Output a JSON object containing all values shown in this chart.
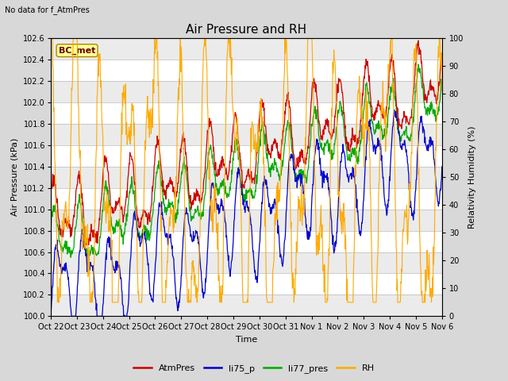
{
  "title": "Air Pressure and RH",
  "subtitle": "No data for f_AtmPres",
  "xlabel": "Time",
  "ylabel_left": "Air Pressure (kPa)",
  "ylabel_right": "Relativity Humidity (%)",
  "ylim_left": [
    100.0,
    102.6
  ],
  "ylim_right": [
    0,
    100
  ],
  "yticks_left": [
    100.0,
    100.2,
    100.4,
    100.6,
    100.8,
    101.0,
    101.2,
    101.4,
    101.6,
    101.8,
    102.0,
    102.2,
    102.4,
    102.6
  ],
  "yticks_right": [
    0,
    10,
    20,
    30,
    40,
    50,
    60,
    70,
    80,
    90,
    100
  ],
  "x_tick_labels": [
    "Oct 22",
    "Oct 23",
    "Oct 24",
    "Oct 25",
    "Oct 26",
    "Oct 27",
    "Oct 28",
    "Oct 29",
    "Oct 30",
    "Oct 31",
    "Nov 1",
    "Nov 2",
    "Nov 3",
    "Nov 4",
    "Nov 5",
    "Nov 6"
  ],
  "legend_labels": [
    "AtmPres",
    "li75_p",
    "li77_pres",
    "RH"
  ],
  "legend_colors": [
    "#cc0000",
    "#0000cc",
    "#00aa00",
    "#ffaa00"
  ],
  "bc_met_box_color": "#ffff99",
  "bc_met_box_edge": "#aa8800",
  "background_color": "#d8d8d8",
  "plot_bg_color": "#ffffff",
  "band_color_light": "#ebebeb",
  "band_color_dark": "#d8d8d8",
  "title_fontsize": 11,
  "label_fontsize": 8,
  "tick_fontsize": 7,
  "n_points": 1000
}
